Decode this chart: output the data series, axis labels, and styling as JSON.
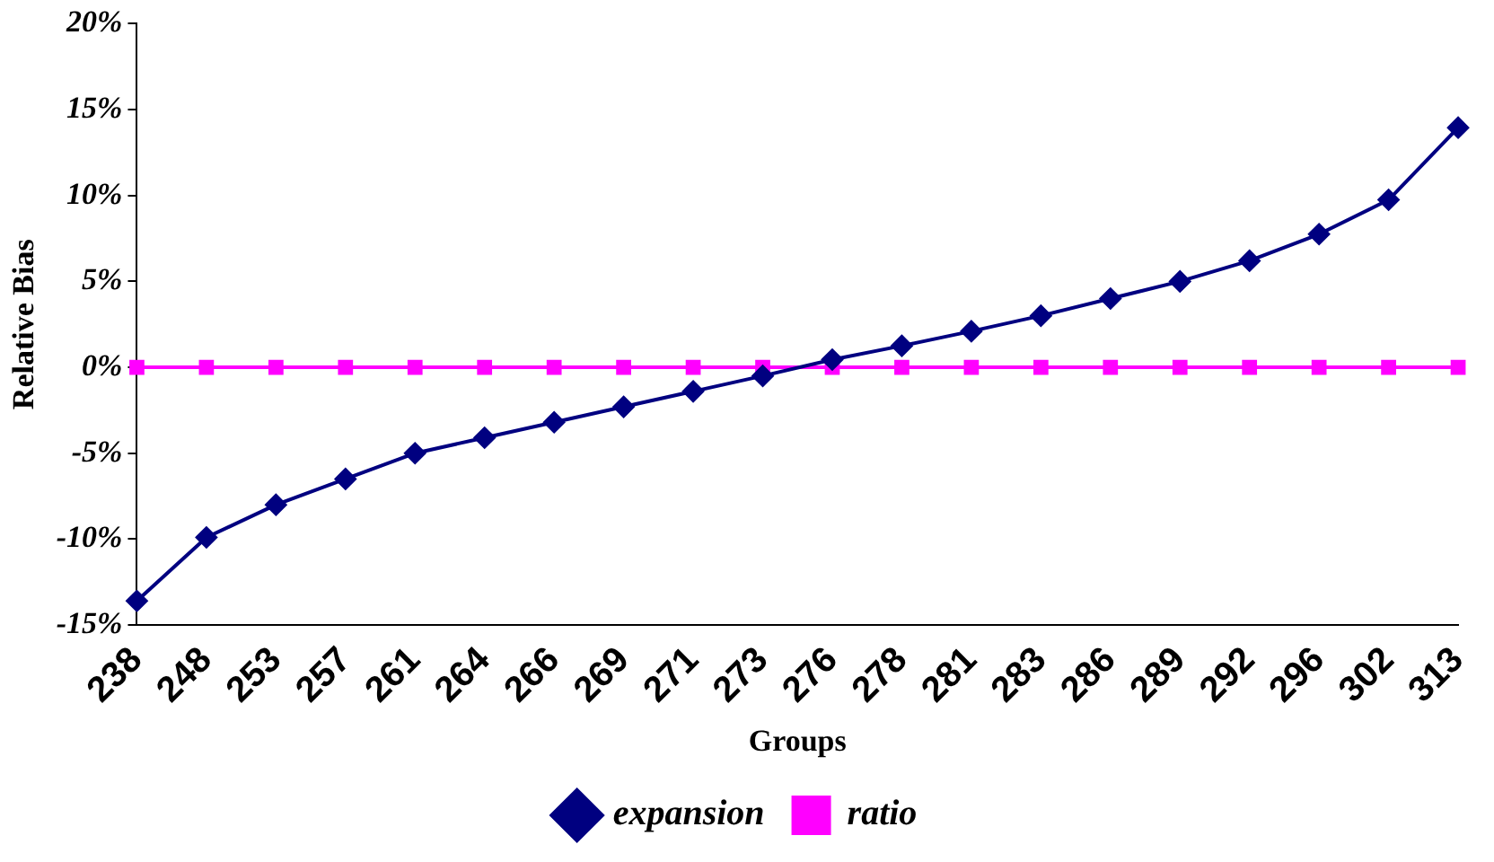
{
  "chart_data": {
    "type": "line",
    "xlabel": "Groups",
    "ylabel": "Relative Bias",
    "categories": [
      "238",
      "248",
      "253",
      "257",
      "261",
      "264",
      "266",
      "269",
      "271",
      "273",
      "276",
      "278",
      "281",
      "283",
      "286",
      "289",
      "292",
      "296",
      "302",
      "313"
    ],
    "series": [
      {
        "name": "expansion",
        "color": "#000080",
        "marker": "diamond",
        "values": [
          -13.6,
          -9.9,
          -8.0,
          -6.5,
          -5.0,
          -4.1,
          -3.2,
          -2.3,
          -1.4,
          -0.5,
          0.45,
          1.25,
          2.1,
          3.0,
          4.0,
          5.0,
          6.2,
          7.75,
          9.75,
          13.95
        ]
      },
      {
        "name": "ratio",
        "color": "#ff00ff",
        "marker": "square",
        "values": [
          0,
          0,
          0,
          0,
          0,
          0,
          0,
          0,
          0,
          0,
          0,
          0,
          0,
          0,
          0,
          0,
          0,
          0,
          0,
          0
        ]
      }
    ],
    "ylim": [
      -15,
      20
    ],
    "yticks": [
      {
        "value": -15,
        "label": "-15%"
      },
      {
        "value": -10,
        "label": "-10%"
      },
      {
        "value": -5,
        "label": "-5%"
      },
      {
        "value": 0,
        "label": "0%"
      },
      {
        "value": 5,
        "label": "5%"
      },
      {
        "value": 10,
        "label": "10%"
      },
      {
        "value": 15,
        "label": "15%"
      },
      {
        "value": 20,
        "label": "20%"
      }
    ],
    "grid": false,
    "legend": "bottom",
    "line_style": "solid"
  }
}
